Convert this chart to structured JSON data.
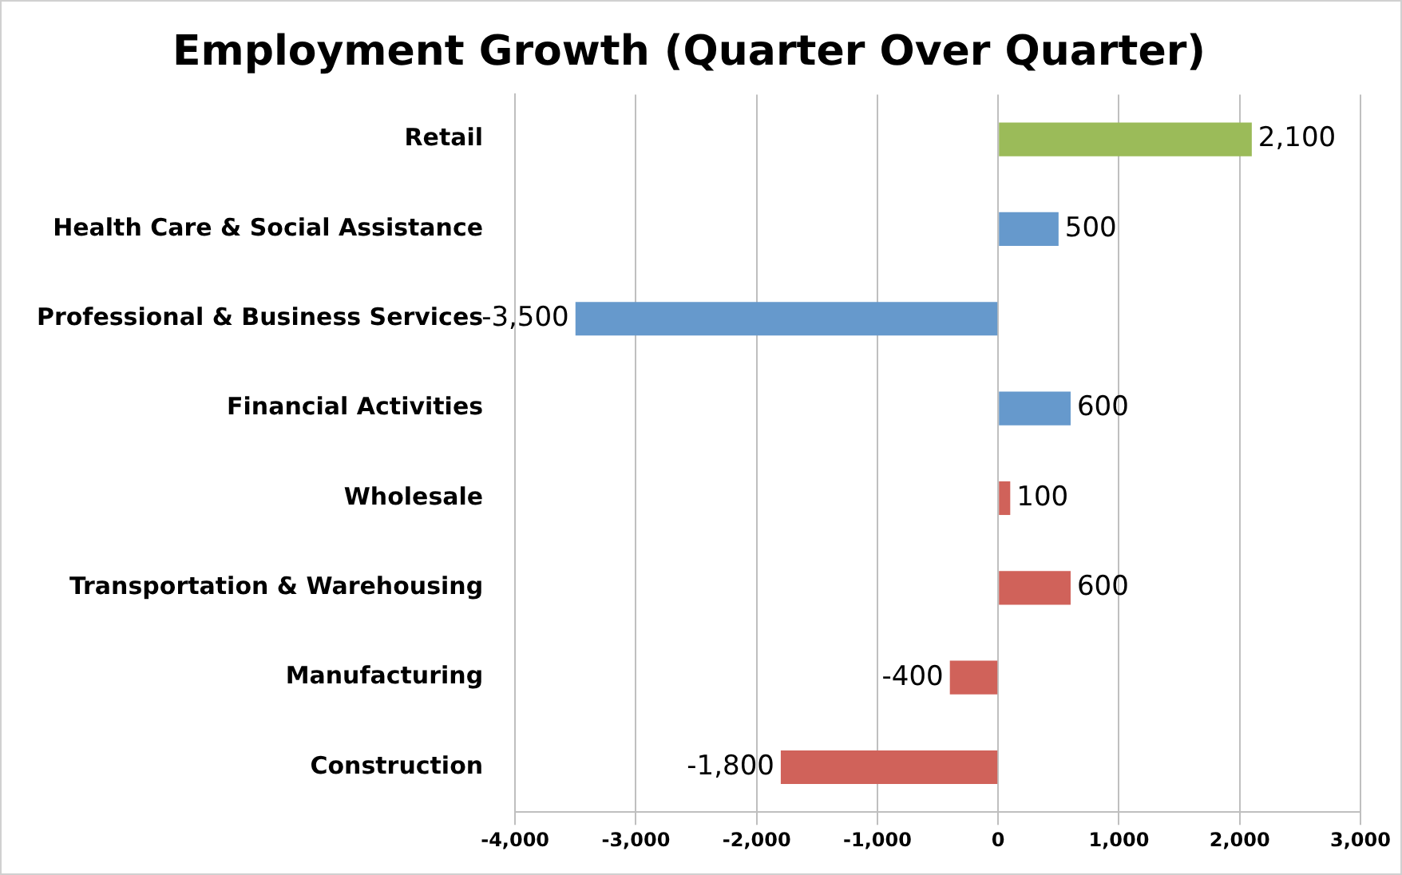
{
  "chart_data": {
    "type": "bar",
    "orientation": "horizontal",
    "title": "Employment Growth (Quarter Over Quarter)",
    "categories": [
      "Retail",
      "Health Care & Social Assistance",
      "Professional & Business Services",
      "Financial Activities",
      "Wholesale",
      "Transportation & Warehousing",
      "Manufacturing",
      "Construction"
    ],
    "values": [
      2100,
      500,
      -3500,
      600,
      100,
      600,
      -400,
      -1800
    ],
    "colors": [
      "#9bbb59",
      "#6699cc",
      "#6699cc",
      "#6699cc",
      "#d0625a",
      "#d0625a",
      "#d0625a",
      "#d0625a"
    ],
    "xlim": [
      -4000,
      3000
    ],
    "xticks": [
      {
        "value": -4000,
        "label": "-4,000"
      },
      {
        "value": -3000,
        "label": "-3,000"
      },
      {
        "value": -2000,
        "label": "-2,000"
      },
      {
        "value": -1000,
        "label": "-1,000"
      },
      0,
      {
        "value": 1000,
        "label": "1,000"
      },
      {
        "value": 2000,
        "label": "2,000"
      },
      {
        "value": 3000,
        "label": "3,000"
      }
    ],
    "value_labels": [
      "2,100",
      "500",
      "-3,500",
      "600",
      "100",
      "600",
      "-400",
      "-1,800"
    ],
    "grid": "x",
    "legend": false
  }
}
